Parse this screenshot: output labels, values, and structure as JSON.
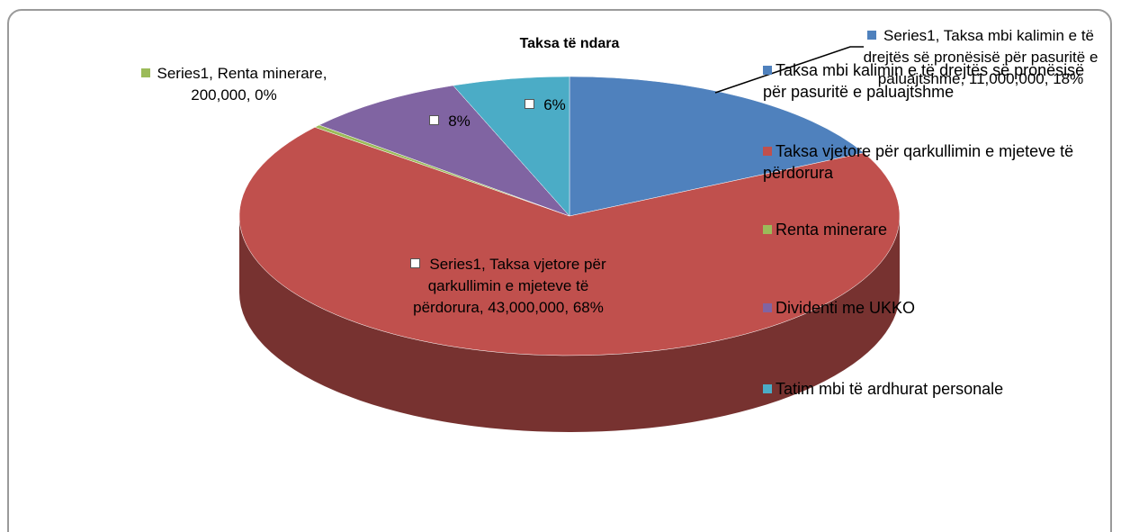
{
  "chart_data": {
    "type": "pie3d",
    "title": "Taksa të ndara",
    "series_name": "Series1",
    "categories": [
      "Taksa mbi kalimin e të drejtës së pronësisë për pasuritë e paluajtshme",
      "Taksa vjetore për qarkullimin e mjeteve të përdorura",
      "Renta minerare",
      "Dividenti me UKKO",
      "Tatim mbi të ardhurat personale"
    ],
    "values": [
      11000000,
      43000000,
      200000,
      5000000,
      3600000
    ],
    "value_labels": [
      "11,000,000",
      "43,000,000",
      "200,000",
      null,
      null
    ],
    "percent_labels": [
      "18%",
      "68%",
      "0%",
      "8%",
      "6%"
    ],
    "colors": [
      "#4f81bd",
      "#c0504d",
      "#9bbb59",
      "#8064a2",
      "#4bacc6"
    ],
    "legend": "right"
  }
}
